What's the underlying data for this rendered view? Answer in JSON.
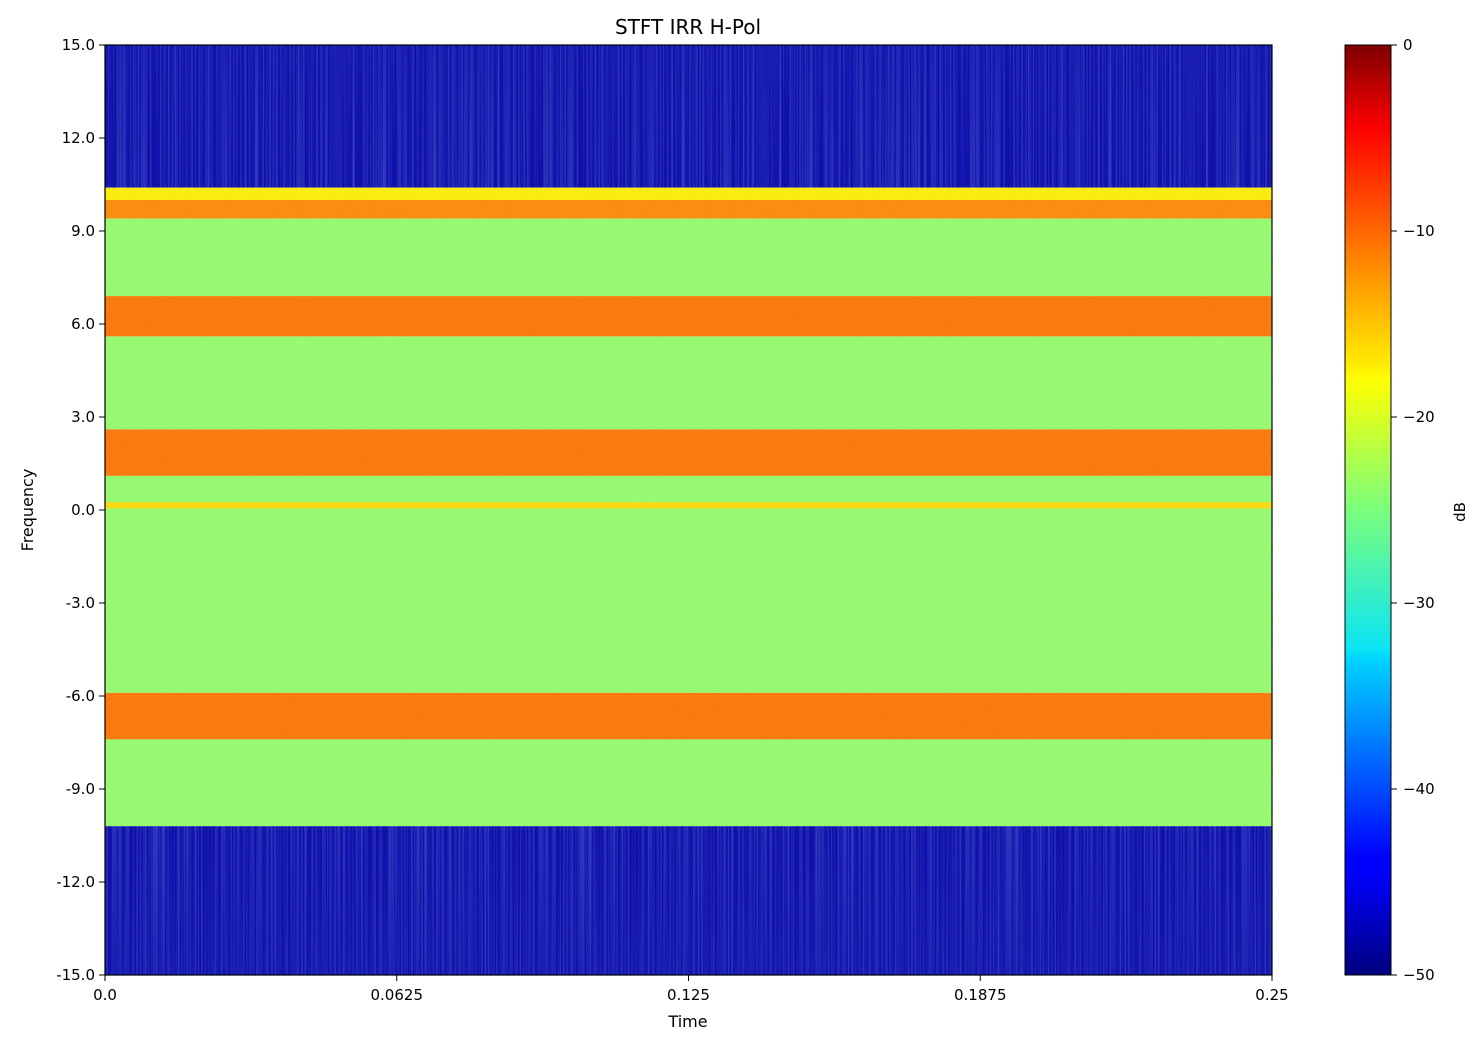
{
  "chart_data": {
    "type": "heatmap",
    "title": "STFT IRR H-Pol",
    "xlabel": "Time",
    "ylabel": "Frequency",
    "xlim": [
      0,
      0.25
    ],
    "ylim": [
      -15,
      15
    ],
    "xticks": [
      0,
      0.0625,
      0.125,
      0.1875,
      0.25
    ],
    "xtick_labels": [
      "0.0",
      "0.0625",
      "0.125",
      "0.1875",
      "0.25"
    ],
    "yticks": [
      15,
      12,
      9,
      6,
      3,
      0,
      -3,
      -6,
      -9,
      -12,
      -15
    ],
    "ytick_labels": [
      "15.0",
      "12.0",
      "9.0",
      "6.0",
      "3.0",
      "0.0",
      "-3.0",
      "-6.0",
      "-9.0",
      "-12.0",
      "-15.0"
    ],
    "colormap": "jet",
    "colorbar": {
      "label": "dB",
      "range": [
        -50,
        0
      ],
      "ticks": [
        0,
        -10,
        -20,
        -30,
        -40,
        -50
      ],
      "tick_labels": [
        "0",
        "−10",
        "−20",
        "−30",
        "−40",
        "−50"
      ]
    },
    "bands": [
      {
        "freq_range": [
          10.4,
          15.0
        ],
        "level_db": -48
      },
      {
        "freq_range": [
          10.0,
          10.4
        ],
        "level_db": -18
      },
      {
        "freq_range": [
          9.4,
          10.0
        ],
        "level_db": -13
      },
      {
        "freq_range": [
          6.9,
          9.4
        ],
        "level_db": -24
      },
      {
        "freq_range": [
          5.6,
          6.9
        ],
        "level_db": -12
      },
      {
        "freq_range": [
          2.6,
          5.6
        ],
        "level_db": -24
      },
      {
        "freq_range": [
          1.1,
          2.6
        ],
        "level_db": -12
      },
      {
        "freq_range": [
          0.25,
          1.1
        ],
        "level_db": -24
      },
      {
        "freq_range": [
          0.05,
          0.25
        ],
        "level_db": -17
      },
      {
        "freq_range": [
          -5.9,
          0.05
        ],
        "level_db": -24
      },
      {
        "freq_range": [
          -7.4,
          -5.9
        ],
        "level_db": -12
      },
      {
        "freq_range": [
          -10.2,
          -7.4
        ],
        "level_db": -24
      },
      {
        "freq_range": [
          -15.0,
          -10.2
        ],
        "level_db": -48
      }
    ]
  }
}
